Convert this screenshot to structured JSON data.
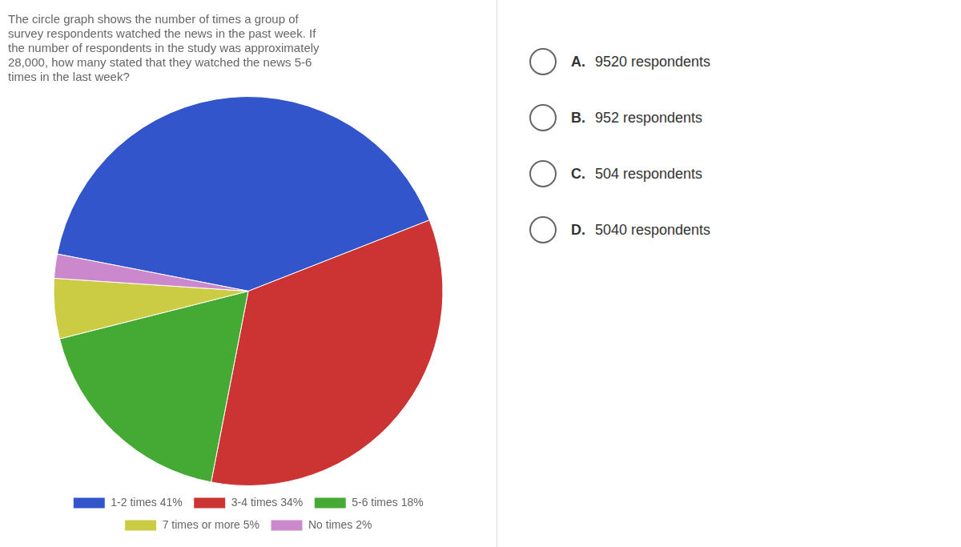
{
  "chart_data": {
    "type": "pie",
    "title": "The circle graph shows the number of times a group of\nsurvey respondents watched the news in the past week. If\nthe number of respondents in the study was approximately\n28,000, how many stated that they watched the news 5-6\ntimes in the last week?",
    "categories": [
      "1-2 times 41%",
      "3-4 times 34%",
      "5-6 times 18%",
      "7 times or more 5%",
      "No times 2%"
    ],
    "values": [
      41,
      34,
      18,
      5,
      2
    ],
    "colors": [
      "#3355cc",
      "#cc3333",
      "#44aa33",
      "#cccc44",
      "#cc88cc"
    ],
    "legend": "bottom",
    "annotations": [
      "A. 9520 respondents",
      "B. 952 respondents",
      "C. 504 respondents",
      "D. 5040 respondents"
    ]
  }
}
